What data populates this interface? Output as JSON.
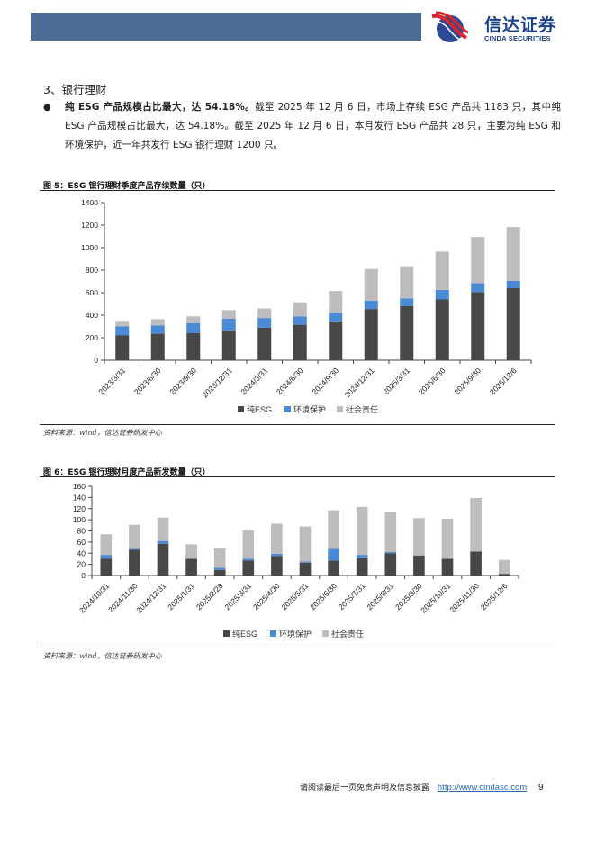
{
  "header": {
    "brand_cn": "信达证券",
    "brand_en": "CINDA SECURITIES",
    "bar_color": "#4b6d95"
  },
  "section": {
    "title": "3、银行理财",
    "bullet": "●",
    "bold_lead": "纯 ESG 产品规模占比最大，达 54.18%。",
    "body": "截至 2025 年 12 月 6 日，市场上存续 ESG 产品共 1183 只，其中纯 ESG 产品规模占比最大，达 54.18%。截至 2025 年 12 月 6 日，本月发行 ESG 产品共 28 只，主要为纯 ESG 和环境保护，近一年共发行 ESG 银行理财 1200 只。"
  },
  "figures": [
    {
      "title": "图 5：ESG 银行理财季度产品存续数量（只）",
      "source": "资料来源：wind，信达证券研发中心"
    },
    {
      "title": "图 6：ESG 银行理财月度产品新发数量（只）",
      "source": "资料来源：wind，信达证券研发中心"
    }
  ],
  "colors": {
    "pure_esg": "#474747",
    "environment": "#4a8ad4",
    "social": "#bdbdbd"
  },
  "chart_data": [
    {
      "type": "bar",
      "stacked": true,
      "title": "ESG 银行理财季度产品存续数量（只）",
      "xlabel": "",
      "ylabel": "",
      "ylim": [
        0,
        1400
      ],
      "yticks": [
        0,
        200,
        400,
        600,
        800,
        1000,
        1200,
        1400
      ],
      "grid": false,
      "legend_position": "bottom",
      "categories": [
        "2023/3/31",
        "2023/6/30",
        "2023/9/30",
        "2023/12/31",
        "2024/3/31",
        "2024/6/30",
        "2024/9/30",
        "2024/12/31",
        "2025/3/31",
        "2025/6/30",
        "2025/9/30",
        "2025/12/6"
      ],
      "series": [
        {
          "name": "纯ESG",
          "values": [
            220,
            235,
            240,
            265,
            290,
            315,
            345,
            455,
            480,
            540,
            605,
            640
          ]
        },
        {
          "name": "环境保护",
          "values": [
            80,
            75,
            90,
            105,
            85,
            75,
            75,
            75,
            70,
            85,
            80,
            65
          ]
        },
        {
          "name": "社会责任",
          "values": [
            50,
            55,
            60,
            75,
            85,
            125,
            195,
            280,
            285,
            340,
            410,
            478
          ]
        }
      ]
    },
    {
      "type": "bar",
      "stacked": true,
      "title": "ESG 银行理财月度产品新发数量（只）",
      "xlabel": "",
      "ylabel": "",
      "ylim": [
        0,
        160
      ],
      "yticks": [
        0,
        20,
        40,
        60,
        80,
        100,
        120,
        140,
        160
      ],
      "grid": false,
      "legend_position": "bottom",
      "categories": [
        "2024/10/31",
        "2024/11/30",
        "2024/12/31",
        "2025/1/31",
        "2025/2/28",
        "2025/3/31",
        "2025/4/30",
        "2025/5/31",
        "2025/6/30",
        "2025/7/31",
        "2025/8/31",
        "2025/9/30",
        "2025/10/31",
        "2025/11/30",
        "2025/12/6"
      ],
      "series": [
        {
          "name": "纯ESG",
          "values": [
            30,
            46,
            57,
            30,
            10,
            27,
            35,
            23,
            27,
            31,
            40,
            36,
            30,
            43,
            3
          ]
        },
        {
          "name": "环境保护",
          "values": [
            7,
            2,
            5,
            0,
            4,
            3,
            4,
            2,
            21,
            6,
            2,
            0,
            0,
            0,
            0
          ]
        },
        {
          "name": "社会责任",
          "values": [
            37,
            43,
            42,
            26,
            35,
            51,
            54,
            63,
            69,
            86,
            72,
            67,
            72,
            96,
            25
          ]
        }
      ]
    }
  ],
  "legend": {
    "items": [
      "纯ESG",
      "环境保护",
      "社会责任"
    ]
  },
  "footer": {
    "disclaimer": "请阅读最后一页免责声明及信息披露",
    "link": "http://www.cindasc.com",
    "page": "9"
  }
}
